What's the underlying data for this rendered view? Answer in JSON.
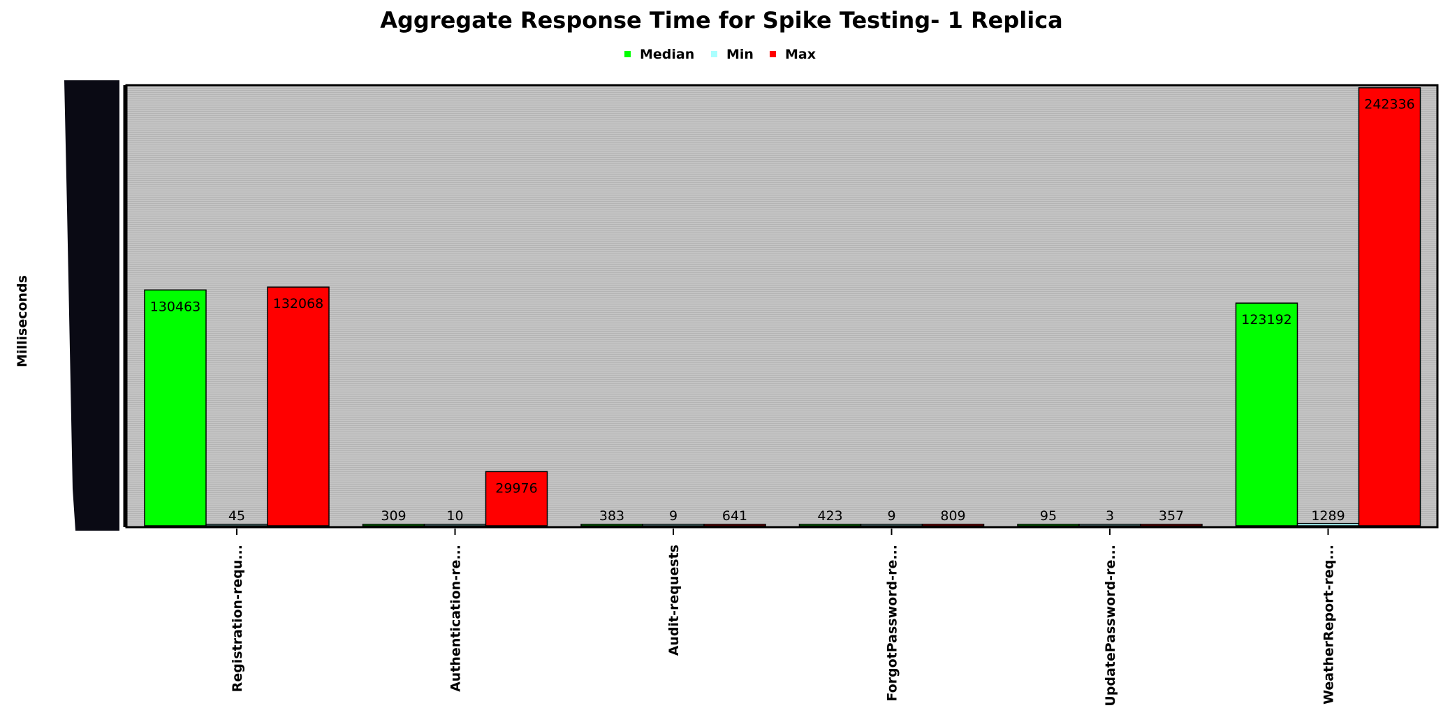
{
  "chart_data": {
    "type": "bar",
    "title": "Aggregate Response Time for Spike Testing- 1 Replica",
    "ylabel": "Milliseconds",
    "xlabel": "",
    "categories": [
      "Registration-requ...",
      "Authentication-re...",
      "Audit-requests",
      "ForgotPassword-re...",
      "UpdatePassword-re...",
      "WeatherReport-req..."
    ],
    "series": [
      {
        "name": "Median",
        "color": "#00ff00",
        "values": [
          130463,
          309,
          383,
          423,
          95,
          123192
        ]
      },
      {
        "name": "Min",
        "color": "#aaffff",
        "values": [
          45,
          10,
          9,
          9,
          3,
          1289
        ]
      },
      {
        "name": "Max",
        "color": "#ff0000",
        "values": [
          132068,
          29976,
          641,
          809,
          357,
          242336
        ]
      }
    ],
    "ylim": [
      0,
      243000
    ],
    "legend_position": "top-center",
    "grid": true
  }
}
